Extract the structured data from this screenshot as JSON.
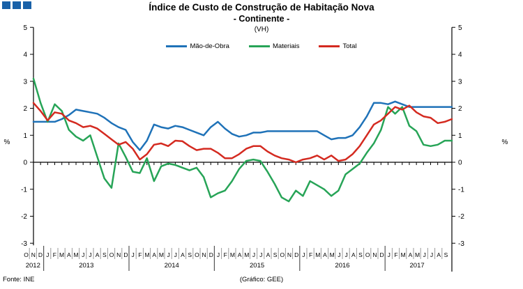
{
  "header": {
    "title_line1": "Índice de Custo de Construção de Habitação Nova",
    "title_line2": "- Continente -",
    "subtitle": "(VH)"
  },
  "legend": {
    "items": [
      {
        "label": "Mão-de-Obra",
        "color": "#1F72B8"
      },
      {
        "label": "Materiais",
        "color": "#27A457"
      },
      {
        "label": "Total",
        "color": "#D42A20"
      }
    ]
  },
  "footer": {
    "source": "Fonte: INE",
    "credit": "(Gráfico: GEE)"
  },
  "chart_data": {
    "type": "line",
    "title": "Índice de Custo de Construção de Habitação Nova - Continente - (VH)",
    "ylabel_left": "%",
    "ylabel_right": "%",
    "ylim": [
      -3,
      5
    ],
    "yticks": [
      -3,
      -2,
      -1,
      0,
      1,
      2,
      3,
      4,
      5
    ],
    "grid": false,
    "legend_position": "top-center",
    "x_months": [
      "O",
      "N",
      "D",
      "J",
      "F",
      "M",
      "A",
      "M",
      "J",
      "J",
      "A",
      "S",
      "O",
      "N",
      "D",
      "J",
      "F",
      "M",
      "A",
      "M",
      "J",
      "J",
      "A",
      "S",
      "O",
      "N",
      "D",
      "J",
      "F",
      "M",
      "A",
      "M",
      "J",
      "J",
      "A",
      "S",
      "O",
      "N",
      "D",
      "J",
      "F",
      "M",
      "A",
      "M",
      "J",
      "J",
      "A",
      "S",
      "O",
      "N",
      "D",
      "J",
      "F",
      "M",
      "A",
      "M",
      "J",
      "J",
      "A",
      "S"
    ],
    "x_years": [
      {
        "label": "2012",
        "span": 3
      },
      {
        "label": "2013",
        "span": 12
      },
      {
        "label": "2014",
        "span": 12
      },
      {
        "label": "2015",
        "span": 12
      },
      {
        "label": "2016",
        "span": 12
      },
      {
        "label": "2017",
        "span": 9
      }
    ],
    "series": [
      {
        "name": "Mão-de-Obra",
        "color": "#1F72B8",
        "values": [
          1.5,
          1.5,
          1.5,
          1.5,
          1.6,
          1.75,
          1.95,
          1.9,
          1.85,
          1.8,
          1.65,
          1.45,
          1.3,
          1.2,
          0.75,
          0.45,
          0.8,
          1.4,
          1.3,
          1.25,
          1.35,
          1.3,
          1.2,
          1.1,
          1.0,
          1.3,
          1.5,
          1.25,
          1.05,
          0.95,
          1.0,
          1.1,
          1.1,
          1.15,
          1.15,
          1.15,
          1.15,
          1.15,
          1.15,
          1.15,
          1.15,
          1.0,
          0.85,
          0.9,
          0.9,
          1.0,
          1.3,
          1.7,
          2.2,
          2.2,
          2.15,
          2.25,
          2.15,
          2.05,
          2.05,
          2.05,
          2.05,
          2.05,
          2.05,
          2.05
        ]
      },
      {
        "name": "Materiais",
        "color": "#27A457",
        "values": [
          3.1,
          2.2,
          1.5,
          2.15,
          1.9,
          1.2,
          0.95,
          0.8,
          1.0,
          0.2,
          -0.6,
          -0.95,
          0.7,
          0.2,
          -0.35,
          -0.4,
          0.15,
          -0.7,
          -0.15,
          -0.05,
          -0.1,
          -0.2,
          -0.3,
          -0.2,
          -0.55,
          -1.3,
          -1.15,
          -1.05,
          -0.7,
          -0.25,
          0.05,
          0.1,
          0.05,
          -0.35,
          -0.8,
          -1.3,
          -1.45,
          -1.05,
          -1.25,
          -0.7,
          -0.85,
          -1.0,
          -1.25,
          -1.05,
          -0.45,
          -0.25,
          -0.05,
          0.35,
          0.7,
          1.2,
          2.05,
          1.8,
          2.05,
          1.35,
          1.15,
          0.65,
          0.6,
          0.65,
          0.8,
          0.8
        ]
      },
      {
        "name": "Total",
        "color": "#D42A20",
        "values": [
          2.2,
          1.9,
          1.55,
          1.85,
          1.8,
          1.55,
          1.45,
          1.3,
          1.35,
          1.25,
          1.05,
          0.85,
          0.65,
          0.75,
          0.5,
          0.1,
          0.3,
          0.65,
          0.7,
          0.6,
          0.8,
          0.78,
          0.6,
          0.45,
          0.5,
          0.5,
          0.35,
          0.15,
          0.15,
          0.3,
          0.5,
          0.6,
          0.6,
          0.4,
          0.25,
          0.15,
          0.1,
          0.0,
          0.1,
          0.15,
          0.25,
          0.1,
          0.25,
          0.05,
          0.1,
          0.3,
          0.6,
          1.0,
          1.4,
          1.55,
          1.8,
          2.05,
          1.95,
          2.1,
          1.85,
          1.7,
          1.65,
          1.45,
          1.5,
          1.6
        ]
      }
    ]
  }
}
